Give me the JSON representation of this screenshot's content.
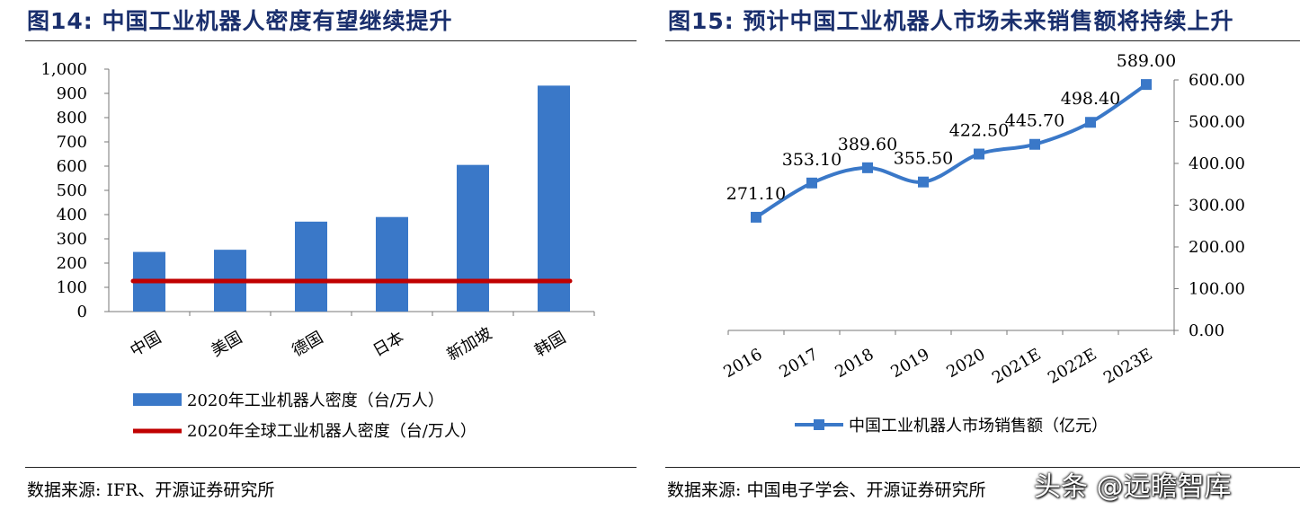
{
  "left": {
    "title": "图14:  中国工业机器人密度有望继续提升",
    "source": "数据来源:  IFR、开源证券研究所"
  },
  "right": {
    "title": "图15:  预计中国工业机器人市场未来销售额将持续上升",
    "source": "数据来源:  中国电子学会、开源证券研究所"
  },
  "watermark": "头条 @远瞻智库",
  "chart_data": [
    {
      "type": "bar",
      "title": "",
      "categories": [
        "中国",
        "美国",
        "德国",
        "日本",
        "新加坡",
        "韩国"
      ],
      "series": [
        {
          "name": "2020年工业机器人密度（台/万人）",
          "type": "bar",
          "color": "#3a78c8",
          "values": [
            246,
            255,
            371,
            390,
            605,
            932
          ]
        },
        {
          "name": "2020年全球工业机器人密度（台/万人）",
          "type": "line",
          "color": "#c00000",
          "value": 126
        }
      ],
      "ylim": [
        0,
        1000
      ],
      "yticks": [
        "0",
        "100",
        "200",
        "300",
        "400",
        "500",
        "600",
        "700",
        "800",
        "900",
        "1,000"
      ],
      "legend_position": "bottom",
      "grid": false
    },
    {
      "type": "line",
      "title": "",
      "categories": [
        "2016",
        "2017",
        "2018",
        "2019",
        "2020",
        "2021E",
        "2022E",
        "2023E"
      ],
      "series": [
        {
          "name": "中国工业机器人市场销售额（亿元）",
          "color": "#3a78c8",
          "values": [
            271.1,
            353.1,
            389.6,
            355.5,
            422.5,
            445.7,
            498.4,
            589.0
          ],
          "labels": [
            "271.10",
            "353.10",
            "389.60",
            "355.50",
            "422.50",
            "445.70",
            "498.40",
            "589.00"
          ]
        }
      ],
      "ylim": [
        0,
        600
      ],
      "yticks": [
        "0.00",
        "100.00",
        "200.00",
        "300.00",
        "400.00",
        "500.00",
        "600.00"
      ],
      "y_axis_side": "right",
      "legend_position": "bottom",
      "grid": false
    }
  ]
}
